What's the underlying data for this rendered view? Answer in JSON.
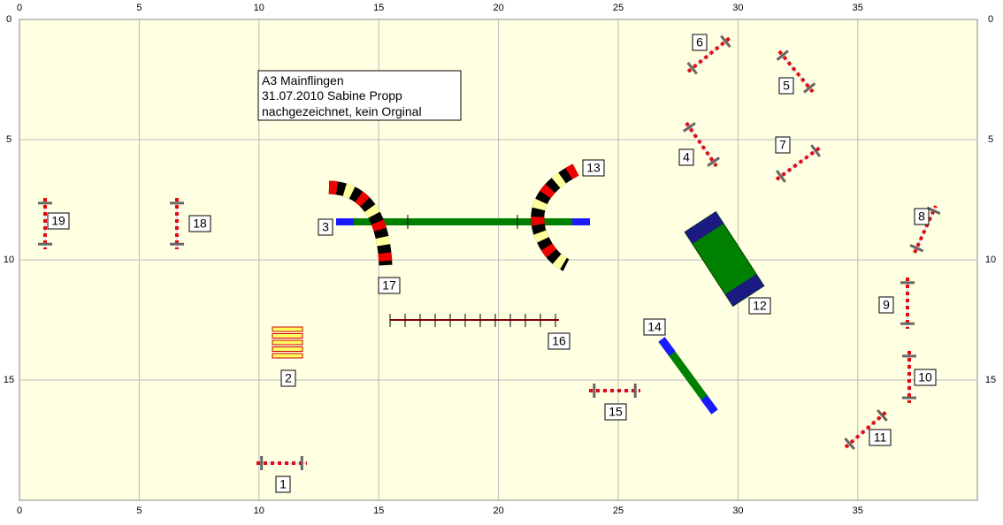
{
  "x_ticks": [
    0,
    5,
    10,
    15,
    20,
    25,
    30,
    35
  ],
  "y_ticks": [
    0,
    5,
    10,
    15
  ],
  "info": [
    "A3 Mainflingen",
    "31.07.2010 Sabine Propp",
    "nachgezeichnet, kein Orginal"
  ],
  "obstacles": [
    1,
    2,
    3,
    4,
    5,
    6,
    7,
    8,
    9,
    10,
    11,
    12,
    13,
    14,
    15,
    16,
    17,
    18,
    19
  ]
}
